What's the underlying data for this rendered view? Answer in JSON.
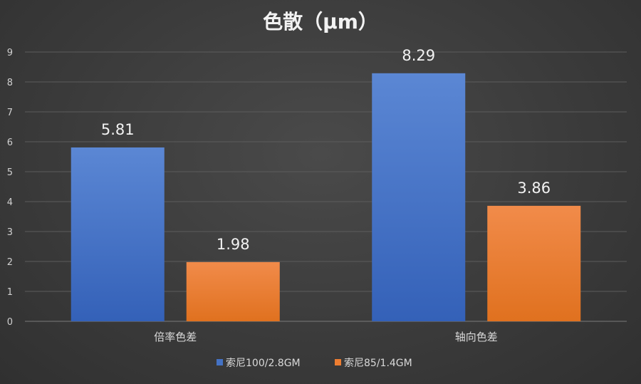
{
  "chart_data": {
    "type": "bar",
    "title": "色散（μm）",
    "categories": [
      "倍率色差",
      "轴向色差"
    ],
    "series": [
      {
        "name": "索尼100/2.8GM",
        "values": [
          5.81,
          8.29
        ],
        "color": "#4472C4"
      },
      {
        "name": "索尼85/1.4GM",
        "values": [
          1.98,
          3.86
        ],
        "color": "#ED7D31"
      }
    ],
    "ylim": [
      0,
      9
    ],
    "yticks": [
      "0",
      "1",
      "2",
      "3",
      "4",
      "5",
      "6",
      "7",
      "8",
      "9"
    ],
    "data_labels": [
      [
        "5.81",
        "8.29"
      ],
      [
        "1.98",
        "3.86"
      ]
    ],
    "grid": true,
    "legend_position": "bottom"
  }
}
